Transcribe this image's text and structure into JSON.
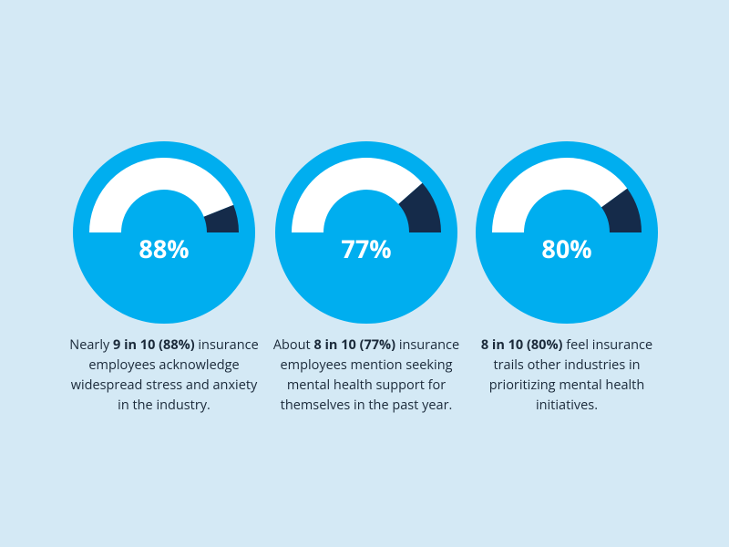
{
  "chart_data": [
    {
      "type": "gauge",
      "value": 88,
      "value_label": "88%",
      "ylim": [
        0,
        100
      ],
      "fill_color": "#ffffff",
      "remainder_color": "#152b4a",
      "dial_color": "#00aeef",
      "caption": [
        {
          "text": "Nearly "
        },
        {
          "text": "9 in 10 (88%)",
          "bold": true
        },
        {
          "text": " insurance employees acknowledge widespread stress and anxiety in the industry."
        }
      ]
    },
    {
      "type": "gauge",
      "value": 77,
      "value_label": "77%",
      "ylim": [
        0,
        100
      ],
      "fill_color": "#ffffff",
      "remainder_color": "#152b4a",
      "dial_color": "#00aeef",
      "caption": [
        {
          "text": "About "
        },
        {
          "text": "8 in 10 (77%)",
          "bold": true
        },
        {
          "text": " insurance employees mention seeking mental health support for themselves in the past year."
        }
      ]
    },
    {
      "type": "gauge",
      "value": 80,
      "value_label": "80%",
      "ylim": [
        0,
        100
      ],
      "fill_color": "#ffffff",
      "remainder_color": "#152b4a",
      "dial_color": "#00aeef",
      "caption": [
        {
          "text": "8 in 10 (80%)",
          "bold": true
        },
        {
          "text": " feel insurance trails other industries in prioritizing mental health initiatives."
        }
      ]
    }
  ]
}
